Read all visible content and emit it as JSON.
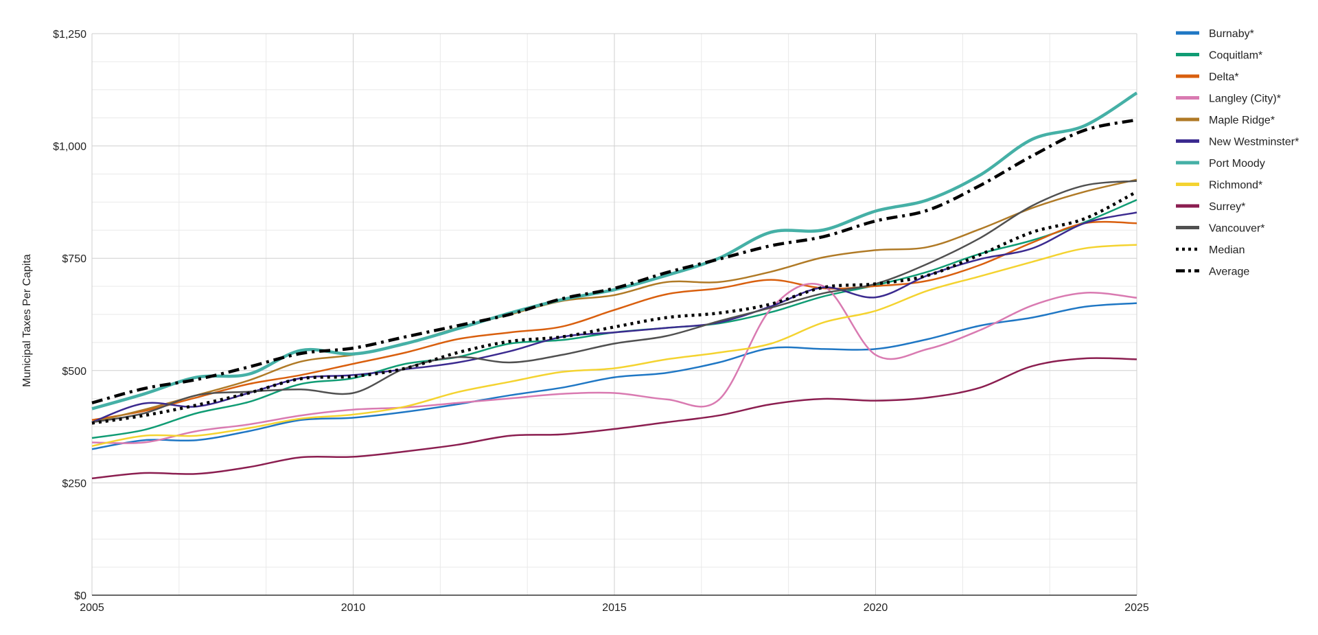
{
  "chart_data": {
    "type": "line",
    "title": "",
    "xlabel": "",
    "ylabel": "Municipal Taxes Per Capita",
    "xlim": [
      2005,
      2025
    ],
    "ylim": [
      0,
      1250
    ],
    "x_ticks": [
      2005,
      2010,
      2015,
      2020,
      2025
    ],
    "x_tick_labels": [
      "2005",
      "2010",
      "2015",
      "2020",
      "2025"
    ],
    "y_ticks": [
      0,
      250,
      500,
      750,
      1000,
      1250
    ],
    "y_tick_labels": [
      "$0",
      "$250",
      "$500",
      "$750",
      "$1,000",
      "$1,250"
    ],
    "grid": true,
    "legend_position": "right",
    "x": [
      2005,
      2006,
      2007,
      2008,
      2009,
      2010,
      2011,
      2012,
      2013,
      2014,
      2015,
      2016,
      2017,
      2018,
      2019,
      2020,
      2021,
      2022,
      2023,
      2024,
      2025
    ],
    "series": [
      {
        "name": "Burnaby*",
        "color": "#1f77c4",
        "style": "solid",
        "width": 2.5,
        "values": [
          325,
          345,
          345,
          365,
          390,
          395,
          408,
          425,
          445,
          462,
          485,
          495,
          518,
          550,
          548,
          548,
          570,
          600,
          618,
          642,
          650
        ]
      },
      {
        "name": "Coquitlam*",
        "color": "#109c74",
        "style": "solid",
        "width": 2.5,
        "values": [
          350,
          368,
          405,
          430,
          470,
          483,
          515,
          530,
          560,
          568,
          585,
          595,
          605,
          630,
          665,
          690,
          720,
          760,
          790,
          830,
          880
        ]
      },
      {
        "name": "Delta*",
        "color": "#d95f0e",
        "style": "solid",
        "width": 2.5,
        "values": [
          390,
          410,
          440,
          470,
          490,
          515,
          540,
          570,
          585,
          598,
          635,
          670,
          683,
          702,
          683,
          688,
          700,
          735,
          785,
          828,
          828
        ]
      },
      {
        "name": "Langley (City)*",
        "color": "#d97ab1",
        "style": "solid",
        "width": 2.5,
        "values": [
          340,
          340,
          365,
          380,
          400,
          413,
          418,
          428,
          438,
          448,
          450,
          436,
          435,
          638,
          688,
          535,
          548,
          590,
          645,
          673,
          662
        ]
      },
      {
        "name": "Maple Ridge*",
        "color": "#b07a26",
        "style": "solid",
        "width": 2.5,
        "values": [
          385,
          413,
          445,
          478,
          520,
          535,
          560,
          595,
          625,
          655,
          668,
          697,
          697,
          720,
          752,
          768,
          775,
          815,
          862,
          898,
          925
        ]
      },
      {
        "name": "New Westminster*",
        "color": "#3b2a8f",
        "style": "solid",
        "width": 2.5,
        "values": [
          385,
          427,
          420,
          450,
          483,
          490,
          503,
          518,
          543,
          575,
          585,
          595,
          607,
          643,
          685,
          663,
          712,
          748,
          772,
          828,
          852
        ]
      },
      {
        "name": "Port Moody",
        "color": "#45b0a6",
        "style": "solid",
        "width": 4.5,
        "values": [
          415,
          448,
          485,
          492,
          545,
          537,
          560,
          593,
          628,
          658,
          680,
          712,
          750,
          808,
          813,
          855,
          880,
          935,
          1015,
          1045,
          1118
        ]
      },
      {
        "name": "Richmond*",
        "color": "#f4d330",
        "style": "solid",
        "width": 2.5,
        "values": [
          332,
          355,
          355,
          372,
          393,
          402,
          420,
          452,
          475,
          497,
          505,
          525,
          540,
          560,
          607,
          633,
          678,
          710,
          742,
          772,
          780
        ]
      },
      {
        "name": "Surrey*",
        "color": "#8b1e50",
        "style": "solid",
        "width": 2.5,
        "values": [
          260,
          272,
          270,
          285,
          307,
          308,
          320,
          335,
          355,
          358,
          370,
          385,
          400,
          425,
          437,
          433,
          440,
          462,
          510,
          527,
          525
        ]
      },
      {
        "name": "Vancouver*",
        "color": "#505050",
        "style": "solid",
        "width": 2.5,
        "values": [
          385,
          405,
          445,
          453,
          458,
          450,
          505,
          530,
          518,
          535,
          560,
          577,
          610,
          640,
          672,
          693,
          738,
          795,
          867,
          912,
          922
        ]
      },
      {
        "name": "Median",
        "color": "#000000",
        "style": "dotted",
        "width": 4.5,
        "values": [
          383,
          400,
          423,
          450,
          482,
          487,
          505,
          540,
          565,
          575,
          597,
          618,
          628,
          648,
          685,
          693,
          712,
          758,
          808,
          838,
          898
        ]
      },
      {
        "name": "Average",
        "color": "#000000",
        "style": "dashdot",
        "width": 4.5,
        "values": [
          428,
          460,
          480,
          508,
          538,
          550,
          575,
          600,
          625,
          660,
          683,
          718,
          748,
          778,
          798,
          833,
          857,
          912,
          978,
          1035,
          1058
        ]
      }
    ]
  }
}
